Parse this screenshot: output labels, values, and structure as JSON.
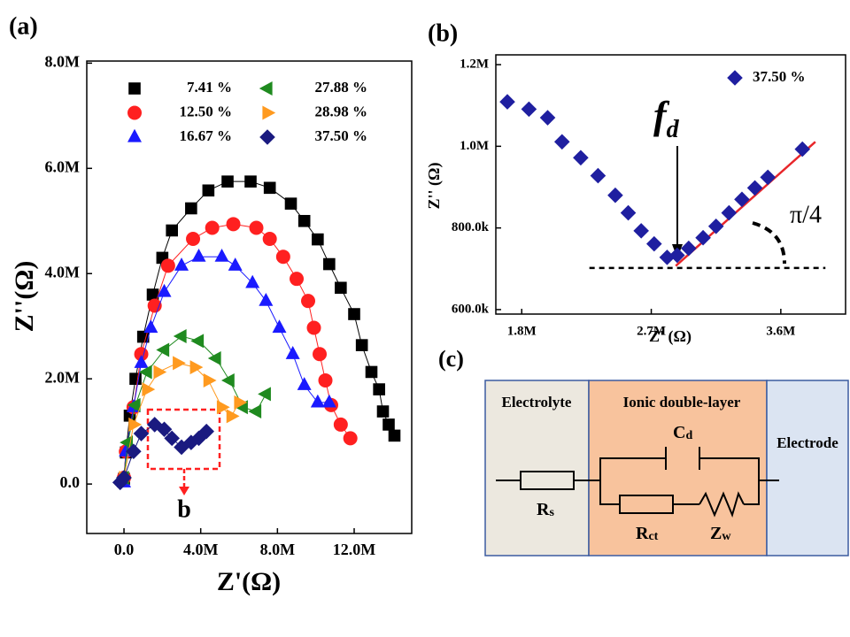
{
  "chart_data": [
    {
      "type": "scatter",
      "panel_label": "(a)",
      "xlabel": "Z'(Ω)",
      "ylabel": "Z''(Ω)",
      "xlim": [
        -1940000.0,
        15000000.0
      ],
      "ylim": [
        -940000.0,
        8040000.0
      ],
      "xticks": [
        {
          "value": 0,
          "label": "0.0"
        },
        {
          "value": 4000000.0,
          "label": "4.0M"
        },
        {
          "value": 8000000.0,
          "label": "8.0M"
        },
        {
          "value": 12000000.0,
          "label": "12.0M"
        }
      ],
      "yticks": [
        {
          "value": 0,
          "label": "0.0"
        },
        {
          "value": 2000000.0,
          "label": "2.0M"
        },
        {
          "value": 4000000.0,
          "label": "4.0M"
        },
        {
          "value": 6000000.0,
          "label": "6.0M"
        },
        {
          "value": 8000000.0,
          "label": "8.0M"
        }
      ],
      "legend": "upper left",
      "annotation": "b",
      "series": [
        {
          "name": "7.41 %",
          "color": "#000000",
          "marker": "square",
          "line": true,
          "x": [
            0,
            100000.0,
            300000.0,
            600000.0,
            1000000.0,
            1500000.0,
            2000000.0,
            2500000.0,
            3500000.0,
            4400000.0,
            5400000.0,
            6600000.0,
            7600000.0,
            8700000.0,
            9400000.0,
            10100000.0,
            10700000.0,
            11300000.0,
            12000000.0,
            12400000.0,
            12900000.0,
            13300000.0,
            13500000.0,
            13800000.0,
            14100000.0
          ],
          "y": [
            100000.0,
            600000.0,
            1300000.0,
            2000000.0,
            2800000.0,
            3600000.0,
            4300000.0,
            4820000.0,
            5240000.0,
            5580000.0,
            5750000.0,
            5750000.0,
            5630000.0,
            5330000.0,
            5000000.0,
            4650000.0,
            4180000.0,
            3730000.0,
            3230000.0,
            2640000.0,
            2130000.0,
            1800000.0,
            1380000.0,
            1130000.0,
            920000.0
          ]
        },
        {
          "name": "12.50 %",
          "color": "#ff2020",
          "marker": "circle",
          "line": true,
          "x": [
            0,
            100000.0,
            500000.0,
            900000.0,
            1600000.0,
            2300000.0,
            3600000.0,
            4600000.0,
            5700000.0,
            6900000.0,
            7600000.0,
            8300000.0,
            9000000.0,
            9600000.0,
            9900000.0,
            10200000.0,
            10500000.0,
            10800000.0,
            11300000.0,
            11800000.0
          ],
          "y": [
            120000.0,
            620000.0,
            1460000.0,
            2470000.0,
            3390000.0,
            4150000.0,
            4660000.0,
            4870000.0,
            4940000.0,
            4870000.0,
            4660000.0,
            4320000.0,
            3900000.0,
            3480000.0,
            2970000.0,
            2470000.0,
            1970000.0,
            1500000.0,
            1130000.0,
            870000.0
          ]
        },
        {
          "name": "16.67 %",
          "color": "#1a1aff",
          "marker": "triangle-up",
          "line": true,
          "x": [
            0,
            100000.0,
            500000.0,
            900000.0,
            1400000.0,
            2100000.0,
            3000000.0,
            3900000.0,
            5100000.0,
            5800000.0,
            6700000.0,
            7400000.0,
            8100000.0,
            8800000.0,
            9400000.0,
            10100000.0,
            10700000.0
          ],
          "y": [
            30000.0,
            620000.0,
            1460000.0,
            2300000.0,
            2970000.0,
            3650000.0,
            4150000.0,
            4320000.0,
            4320000.0,
            4150000.0,
            3820000.0,
            3480000.0,
            2970000.0,
            2470000.0,
            1880000.0,
            1550000.0,
            1550000.0
          ]
        },
        {
          "name": "27.88 %",
          "color": "#1f8a1f",
          "marker": "triangle-left",
          "line": true,
          "x": [
            0,
            200000.0,
            600000.0,
            1200000.0,
            2100000.0,
            3000000.0,
            3900000.0,
            4800000.0,
            5500000.0,
            6200000.0,
            6900000.0,
            7400000.0
          ],
          "y": [
            120000.0,
            790000.0,
            1500000.0,
            2130000.0,
            2550000.0,
            2810000.0,
            2720000.0,
            2390000.0,
            1970000.0,
            1460000.0,
            1380000.0,
            1710000.0
          ]
        },
        {
          "name": "28.98 %",
          "color": "#ff9a1f",
          "marker": "triangle-right",
          "line": true,
          "x": [
            0,
            500000.0,
            1200000.0,
            1800000.0,
            2800000.0,
            3700000.0,
            4400000.0,
            5100000.0,
            5600000.0,
            6000000.0
          ],
          "y": [
            120000.0,
            1130000.0,
            1800000.0,
            2130000.0,
            2300000.0,
            2220000.0,
            1970000.0,
            1460000.0,
            1290000.0,
            1550000.0
          ]
        },
        {
          "name": "37.50 %",
          "color": "#1a1a80",
          "marker": "diamond",
          "line": true,
          "x": [
            -200000.0,
            0,
            500000.0,
            900000.0,
            1600000.0,
            2100000.0,
            2500000.0,
            3000000.0,
            3500000.0,
            3900000.0,
            4300000.0
          ],
          "y": [
            30000.0,
            120000.0,
            620000.0,
            960000.0,
            1130000.0,
            1040000.0,
            870000.0,
            700000.0,
            790000.0,
            870000.0,
            1000000.0
          ]
        }
      ]
    },
    {
      "type": "scatter",
      "panel_label": "(b)",
      "xlabel": "Z' (Ω)",
      "ylabel": "Z'' (Ω)",
      "xlim": [
        1620000.0,
        4050000.0
      ],
      "ylim": [
        589000.0,
        1224000.0
      ],
      "xticks": [
        {
          "value": 1800000.0,
          "label": "1.8M"
        },
        {
          "value": 2700000.0,
          "label": "2.7M"
        },
        {
          "value": 3600000.0,
          "label": "3.6M"
        }
      ],
      "yticks": [
        {
          "value": 600000.0,
          "label": "600.0k"
        },
        {
          "value": 800000.0,
          "label": "800.0k"
        },
        {
          "value": 1000000.0,
          "label": "1.0M"
        },
        {
          "value": 1200000.0,
          "label": "1.2M"
        }
      ],
      "legend": "upper right",
      "fd": {
        "text": "f",
        "subscript": "d"
      },
      "angle_label": "π/4",
      "series": [
        {
          "name": "37.50 %",
          "color": "#1f1fa0",
          "marker": "diamond",
          "line": false,
          "x": [
            1700000.0,
            1850000.0,
            1980000.0,
            2080000.0,
            2210000.0,
            2330000.0,
            2450000.0,
            2540000.0,
            2630000.0,
            2720000.0,
            2810000.0,
            2880000.0,
            2960000.0,
            3060000.0,
            3150000.0,
            3240000.0,
            3330000.0,
            3420000.0,
            3510000.0,
            3750000.0
          ],
          "y": [
            1109000.0,
            1091000.0,
            1070000.0,
            1011000.0,
            972000.0,
            928000.0,
            880000.0,
            837000.0,
            793000.0,
            761000.0,
            728000.0,
            733000.0,
            750000.0,
            776000.0,
            804000.0,
            837000.0,
            870000.0,
            898000.0,
            924000.0,
            993000.0
          ]
        }
      ],
      "fit_line": {
        "color": "#e8262a",
        "x": [
          2870000.0,
          3840000.0
        ],
        "y": [
          707000.0,
          1011000.0
        ]
      },
      "baseline": {
        "color": "#000000",
        "x": [
          2270000.0,
          3910000.0
        ],
        "y": [
          702000.0,
          702000.0
        ]
      }
    }
  ],
  "diagram": {
    "panel_label": "(c)",
    "regions": [
      "Electrolyte",
      "Ionic double-layer",
      "Electrode"
    ],
    "components": [
      {
        "symbol": "C",
        "subscript": "d"
      },
      {
        "symbol": "R",
        "subscript": "s"
      },
      {
        "symbol": "R",
        "subscript": "ct"
      },
      {
        "symbol": "Z",
        "subscript": "w"
      }
    ]
  }
}
